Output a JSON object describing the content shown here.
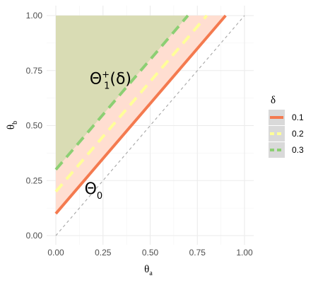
{
  "chart_data": {
    "type": "line",
    "title": "",
    "xlabel": {
      "symbol": "θ",
      "subscript": "a"
    },
    "ylabel": {
      "symbol": "θ",
      "subscript": "b"
    },
    "xlim": [
      0,
      1
    ],
    "ylim": [
      0,
      1
    ],
    "xticks": [
      "0.00",
      "0.25",
      "0.50",
      "0.75",
      "1.00"
    ],
    "yticks": [
      "0.00",
      "0.25",
      "0.50",
      "0.75",
      "1.00"
    ],
    "grid": true,
    "legend": {
      "title": "δ",
      "position": "right"
    },
    "reference_line": {
      "x": [
        0,
        1
      ],
      "y": [
        0,
        1
      ],
      "color": "#a6a6a6",
      "style": "dashed"
    },
    "series": [
      {
        "name": "0.1",
        "delta": 0.1,
        "x": [
          0,
          0.9
        ],
        "y": [
          0.1,
          1
        ],
        "color": "#f47a4f",
        "style": "solid"
      },
      {
        "name": "0.2",
        "delta": 0.2,
        "x": [
          0,
          0.8
        ],
        "y": [
          0.2,
          1
        ],
        "color": "#ffff99",
        "style": "dashed"
      },
      {
        "name": "0.3",
        "delta": 0.3,
        "x": [
          0,
          0.7
        ],
        "y": [
          0.3,
          1
        ],
        "color": "#8ccf73",
        "style": "dashed"
      }
    ],
    "regions": [
      {
        "bounded_by_delta": 0.1,
        "fill": "#ffded1"
      },
      {
        "bounded_by_delta": 0.3,
        "fill": "#d9dcb4"
      }
    ],
    "annotations": [
      {
        "label": "region-theta1",
        "base": "Θ",
        "sup": "+",
        "sub": "1",
        "tail": "(δ)",
        "x": 0.29,
        "y": 0.69
      },
      {
        "label": "region-theta0",
        "base": "Θ",
        "sub": "0",
        "x": 0.2,
        "y": 0.19
      }
    ]
  }
}
